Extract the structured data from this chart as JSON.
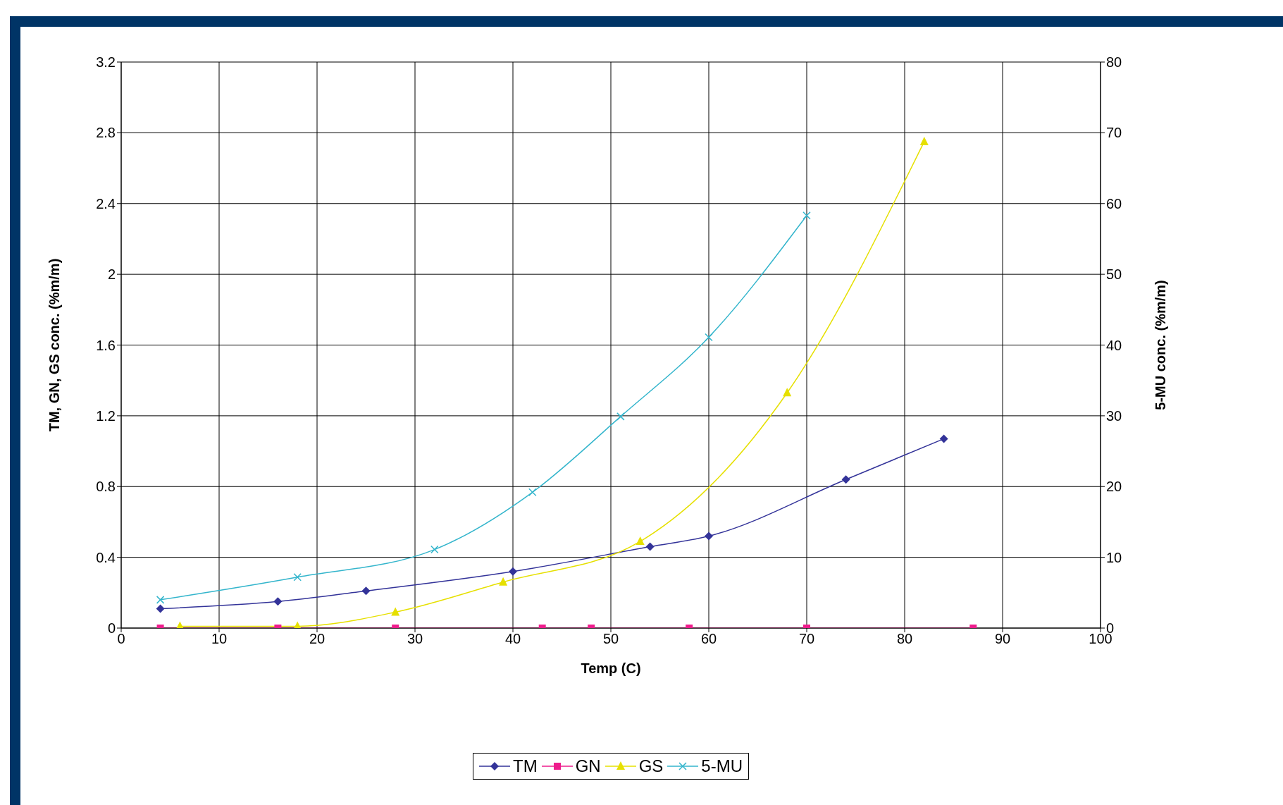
{
  "chart_data": {
    "type": "line",
    "xlabel": "Temp (C)",
    "ylabel": "TM, GN, GS conc. (%m/m)",
    "y2label": "5-MU conc. (%m/m)",
    "xlim": [
      0,
      100
    ],
    "xticks": [
      0,
      10,
      20,
      30,
      40,
      50,
      60,
      70,
      80,
      90,
      100
    ],
    "ylim": [
      0,
      3.2
    ],
    "yticks": [
      0,
      0.4,
      0.8,
      1.2,
      1.6,
      2,
      2.4,
      2.8,
      3.2
    ],
    "y2lim": [
      0,
      80
    ],
    "y2ticks": [
      0,
      10,
      20,
      30,
      40,
      50,
      60,
      70,
      80
    ],
    "grid": true,
    "legend": "bottom",
    "series": [
      {
        "name": "TM",
        "color": "#333399",
        "marker": "diamond",
        "x": [
          4,
          16,
          25,
          40,
          54,
          60,
          74,
          84
        ],
        "values": [
          0.11,
          0.15,
          0.21,
          0.32,
          0.46,
          0.52,
          0.84,
          1.07
        ]
      },
      {
        "name": "GN",
        "color": "#ee1c8c",
        "marker": "square",
        "x": [
          4,
          16,
          28,
          43,
          48,
          58,
          70,
          87
        ],
        "values": [
          0,
          0,
          0,
          0,
          0,
          0,
          0,
          0
        ]
      },
      {
        "name": "GS",
        "color": "#e6e000",
        "marker": "triangle",
        "x": [
          6,
          18,
          28,
          39,
          53,
          68,
          82
        ],
        "values": [
          0.01,
          0.01,
          0.09,
          0.26,
          0.49,
          1.33,
          2.75
        ]
      },
      {
        "name": "5-MU",
        "color": "#33b5cc",
        "marker": "cross",
        "axis": "y2",
        "x": [
          4,
          18,
          32,
          42,
          51,
          60,
          70
        ],
        "values": [
          4,
          7.2,
          11.1,
          19.2,
          29.9,
          41.1,
          58.3
        ]
      }
    ]
  }
}
